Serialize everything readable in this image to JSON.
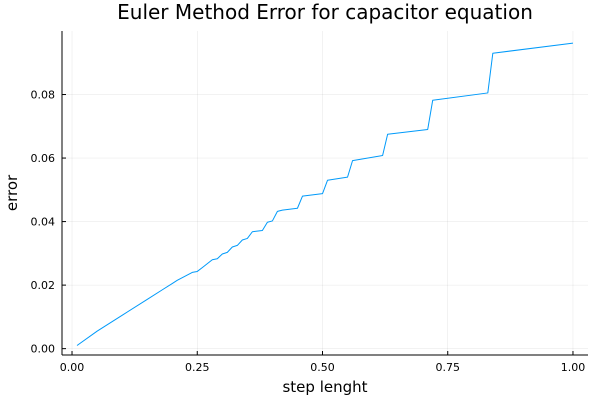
{
  "chart_data": {
    "type": "line",
    "title": "Euler Method Error for capacitor equation",
    "xlabel": "step lenght",
    "ylabel": "error",
    "xlim": [
      -0.02,
      1.03
    ],
    "ylim": [
      -0.002,
      0.1
    ],
    "xticks": [
      0.0,
      0.25,
      0.5,
      0.75,
      1.0
    ],
    "xtick_labels": [
      "0.00",
      "0.25",
      "0.50",
      "0.75",
      "1.00"
    ],
    "yticks": [
      0.0,
      0.02,
      0.04,
      0.06,
      0.08
    ],
    "ytick_labels": [
      "0.00",
      "0.02",
      "0.04",
      "0.06",
      "0.08"
    ],
    "grid": true,
    "legend": "none",
    "series": [
      {
        "color": "#009AFA",
        "x": [
          0.01,
          0.05,
          0.1,
          0.15,
          0.18,
          0.2,
          0.21,
          0.24,
          0.25,
          0.26,
          0.28,
          0.29,
          0.3,
          0.31,
          0.32,
          0.33,
          0.34,
          0.35,
          0.36,
          0.38,
          0.39,
          0.4,
          0.41,
          0.42,
          0.43,
          0.45,
          0.46,
          0.5,
          0.51,
          0.55,
          0.56,
          0.62,
          0.63,
          0.71,
          0.72,
          0.83,
          0.84,
          1.0
        ],
        "y": [
          0.001,
          0.0055,
          0.0105,
          0.0155,
          0.0185,
          0.0205,
          0.0215,
          0.024,
          0.0243,
          0.0255,
          0.028,
          0.0283,
          0.0298,
          0.0303,
          0.032,
          0.0325,
          0.0342,
          0.0347,
          0.0368,
          0.0372,
          0.0398,
          0.0402,
          0.0432,
          0.0436,
          0.0438,
          0.0442,
          0.048,
          0.0488,
          0.053,
          0.054,
          0.0592,
          0.0608,
          0.0675,
          0.069,
          0.0782,
          0.0805,
          0.093,
          0.0962
        ]
      }
    ]
  }
}
